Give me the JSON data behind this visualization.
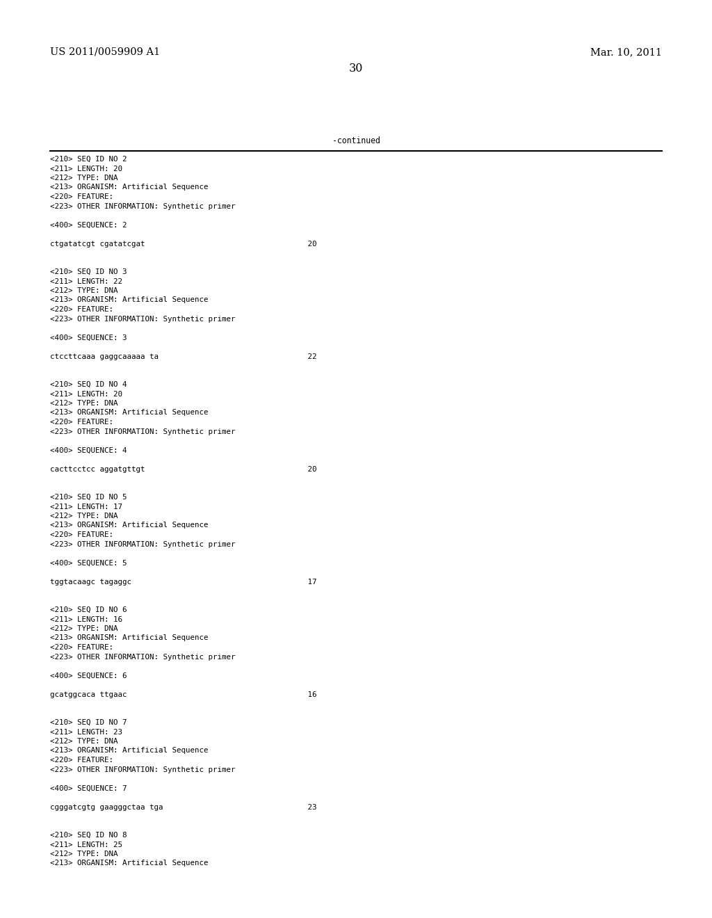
{
  "background_color": "#ffffff",
  "header_left": "US 2011/0059909 A1",
  "header_right": "Mar. 10, 2011",
  "page_number": "30",
  "continued_label": "-continued",
  "monospace_font_size": 7.8,
  "header_font_size": 10.5,
  "page_num_font_size": 11.5,
  "content_lines": [
    "<210> SEQ ID NO 2",
    "<211> LENGTH: 20",
    "<212> TYPE: DNA",
    "<213> ORGANISM: Artificial Sequence",
    "<220> FEATURE:",
    "<223> OTHER INFORMATION: Synthetic primer",
    "",
    "<400> SEQUENCE: 2",
    "",
    "ctgatatcgt cgatatcgat                                    20",
    "",
    "",
    "<210> SEQ ID NO 3",
    "<211> LENGTH: 22",
    "<212> TYPE: DNA",
    "<213> ORGANISM: Artificial Sequence",
    "<220> FEATURE:",
    "<223> OTHER INFORMATION: Synthetic primer",
    "",
    "<400> SEQUENCE: 3",
    "",
    "ctccttcaaa gaggcaaaaa ta                                 22",
    "",
    "",
    "<210> SEQ ID NO 4",
    "<211> LENGTH: 20",
    "<212> TYPE: DNA",
    "<213> ORGANISM: Artificial Sequence",
    "<220> FEATURE:",
    "<223> OTHER INFORMATION: Synthetic primer",
    "",
    "<400> SEQUENCE: 4",
    "",
    "cacttcctcc aggatgttgt                                    20",
    "",
    "",
    "<210> SEQ ID NO 5",
    "<211> LENGTH: 17",
    "<212> TYPE: DNA",
    "<213> ORGANISM: Artificial Sequence",
    "<220> FEATURE:",
    "<223> OTHER INFORMATION: Synthetic primer",
    "",
    "<400> SEQUENCE: 5",
    "",
    "tggtacaagc tagaggc                                       17",
    "",
    "",
    "<210> SEQ ID NO 6",
    "<211> LENGTH: 16",
    "<212> TYPE: DNA",
    "<213> ORGANISM: Artificial Sequence",
    "<220> FEATURE:",
    "<223> OTHER INFORMATION: Synthetic primer",
    "",
    "<400> SEQUENCE: 6",
    "",
    "gcatggcaca ttgaac                                        16",
    "",
    "",
    "<210> SEQ ID NO 7",
    "<211> LENGTH: 23",
    "<212> TYPE: DNA",
    "<213> ORGANISM: Artificial Sequence",
    "<220> FEATURE:",
    "<223> OTHER INFORMATION: Synthetic primer",
    "",
    "<400> SEQUENCE: 7",
    "",
    "cgggatcgtg gaagggctaa tga                                23",
    "",
    "",
    "<210> SEQ ID NO 8",
    "<211> LENGTH: 25",
    "<212> TYPE: DNA",
    "<213> ORGANISM: Artificial Sequence"
  ]
}
